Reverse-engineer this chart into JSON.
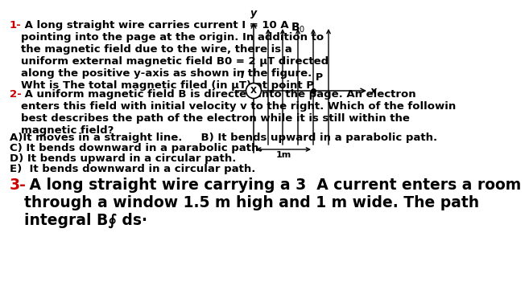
{
  "background_color": "#ffffff",
  "text_color": "#000000",
  "red_color": "#cc0000",
  "q1_number": "1-",
  "q1_body": " A long straight wire carries current I = 10 A\npointing into the page at the origin. In addition to\nthe magnetic field due to the wire, there is a\nuniform external magnetic field B0 = 2 μT directed\nalong the positive y-axis as shown in the figure.\nWht is The total magnetic filed (in μT) at point P",
  "q2_number": "2-",
  "q2_body": " A uniform magnetic field B is directed into the page. An electron\nenters this field with initial velocity v to the right. Which of the followin\nbest describes the path of the electron while it is still within the\nmagnetic field?",
  "q2_A": "A)It moves in a straight line.",
  "q2_B": "     B) It bends upward in a parabolic path.",
  "q2_C": "C) It bends downward in a parabolic path.",
  "q2_D": "D) It bends upward in a circular path.",
  "q2_E": "E)  It bends downward in a circular path.",
  "q3_number": "3-",
  "q3_body": " A long straight wire carrying a 3  A current enters a room\nthrough a window 1.5 m high and 1 m wide. The path\nintegral B∮ ds·",
  "body_fs": 9.5,
  "q3_fs": 13.5,
  "diagram_I": "I",
  "diagram_y": "y",
  "diagram_x": "x",
  "diagram_B0": "B$_0$",
  "diagram_P": "P",
  "diagram_1m": "1m"
}
